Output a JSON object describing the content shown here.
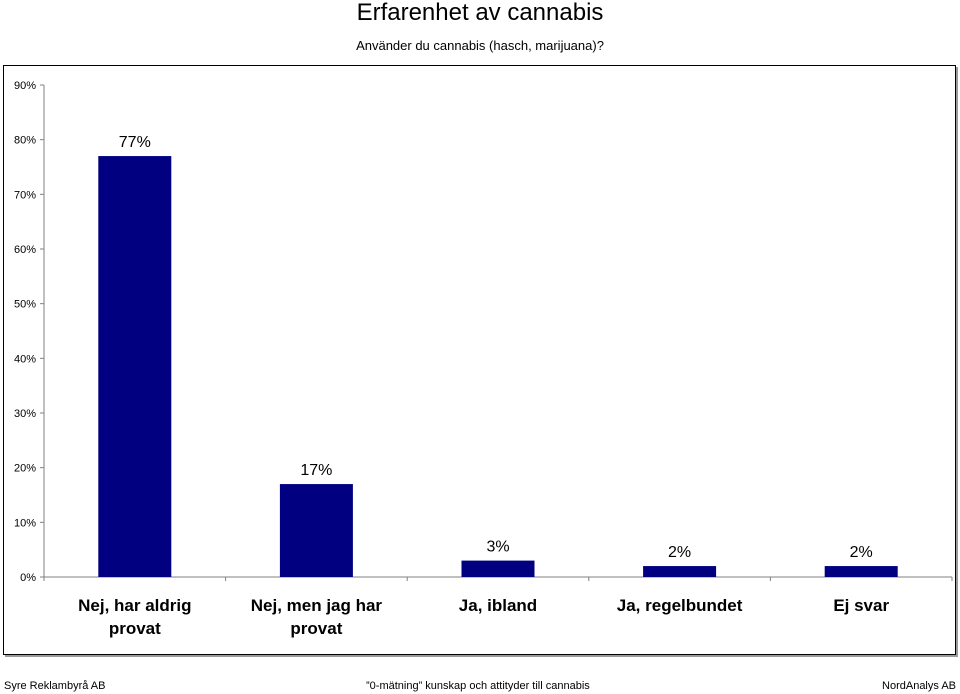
{
  "page": {
    "title": "Erfarenhet av cannabis",
    "subtitle": "Använder du cannabis (hasch, marijuana)?"
  },
  "footer": {
    "left": "Syre Reklambyrå AB",
    "center": "”0-mätning” kunskap och attityder till cannabis",
    "right": "NordAnalys AB"
  },
  "colors": {
    "bar": "#000080",
    "axis": "#808080"
  },
  "chart_data": {
    "type": "bar",
    "title": "Erfarenhet av cannabis",
    "subtitle": "Använder du cannabis (hasch, marijuana)?",
    "categories": [
      [
        "Nej, har aldrig",
        "provat"
      ],
      [
        "Nej, men jag har",
        "provat"
      ],
      [
        "Ja, ibland"
      ],
      [
        "Ja, regelbundet"
      ],
      [
        "Ej svar"
      ]
    ],
    "values": [
      77,
      17,
      3,
      2,
      2
    ],
    "value_labels": [
      "77%",
      "17%",
      "3%",
      "2%",
      "2%"
    ],
    "yticks": [
      "0%",
      "10%",
      "20%",
      "30%",
      "40%",
      "50%",
      "60%",
      "70%",
      "80%",
      "90%"
    ],
    "ylim": [
      0,
      90
    ],
    "grid": false,
    "legend": "none"
  }
}
